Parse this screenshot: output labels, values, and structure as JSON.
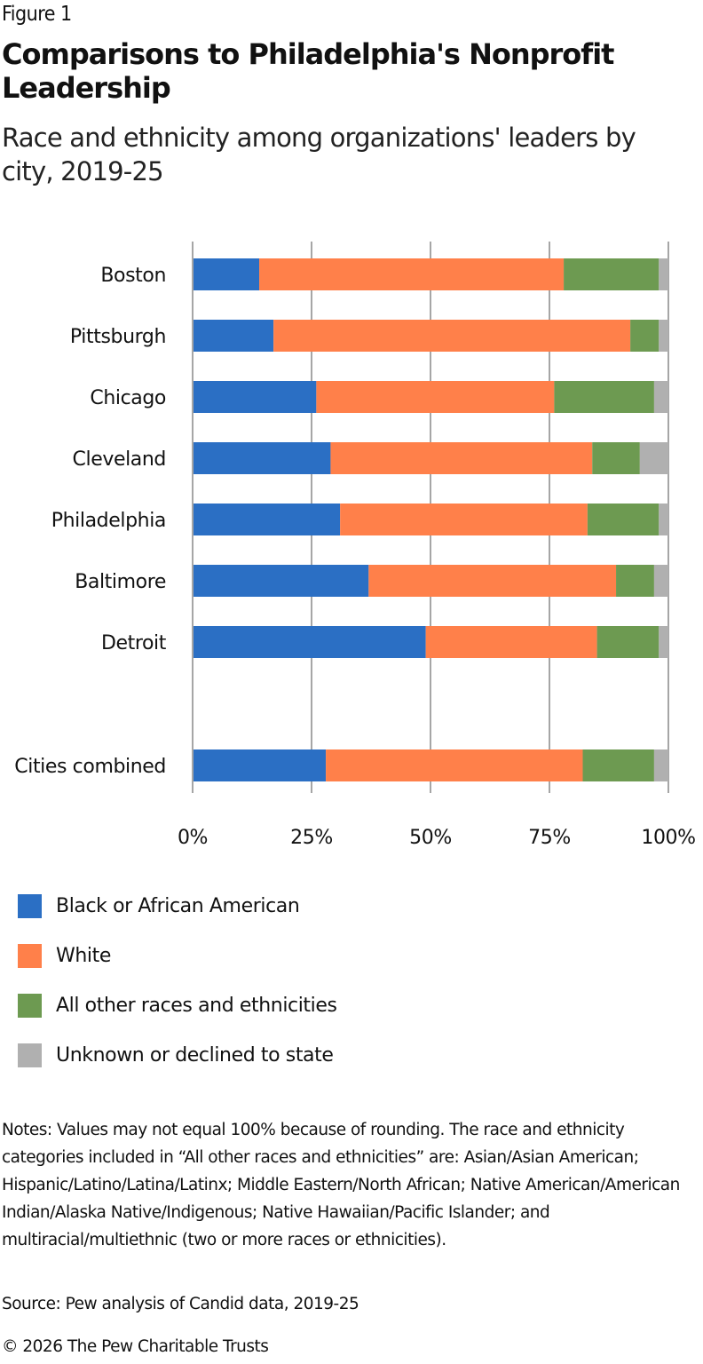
{
  "figure_label": "Figure 1",
  "title": "Comparisons to Philadelphia's Nonprofit Leadership",
  "subtitle": "Race and ethnicity among organizations' leaders by city, 2019-25",
  "chart_data": {
    "type": "bar",
    "orientation": "horizontal",
    "stacked": "percent",
    "title": "Comparisons to Philadelphia's Nonprofit Leadership",
    "subtitle": "Race and ethnicity among organizations' leaders by city, 2019-25",
    "xlabel": "",
    "ylabel": "",
    "xlim": [
      0,
      100
    ],
    "x_ticks": [
      "0%",
      "25%",
      "50%",
      "75%",
      "100%"
    ],
    "grid": true,
    "legend_position": "bottom",
    "categories": [
      "Boston",
      "Pittsburgh",
      "Chicago",
      "Cleveland",
      "Philadelphia",
      "Baltimore",
      "Detroit",
      "Cities combined"
    ],
    "series": [
      {
        "name": "Black or African American",
        "color": "#2b6fc4",
        "values": [
          14,
          17,
          26,
          29,
          31,
          37,
          49,
          28
        ]
      },
      {
        "name": "White",
        "color": "#ff804a",
        "values": [
          64,
          75,
          50,
          55,
          52,
          52,
          36,
          54
        ]
      },
      {
        "name": "All other races and ethnicities",
        "color": "#6d9a51",
        "values": [
          20,
          6,
          21,
          10,
          15,
          8,
          13,
          15
        ]
      },
      {
        "name": "Unknown or declined to state",
        "color": "#b0b0b0",
        "values": [
          2,
          2,
          3,
          6,
          2,
          3,
          2,
          3
        ]
      }
    ]
  },
  "notes": "Notes: Values may not equal 100% because of rounding. The race and ethnicity categories included in “All other races and ethnicities” are: Asian/Asian American; Hispanic/Latino/Latina/Latinx; Middle Eastern/North African; Native American/American Indian/Alaska Native/Indigenous; Native Hawaiian/Pacific Islander; and multiracial/multiethnic (two or more races or ethnicities).",
  "source": "Source: Pew analysis of Candid data, 2019-25",
  "copyright": "© 2026 The Pew Charitable Trusts"
}
